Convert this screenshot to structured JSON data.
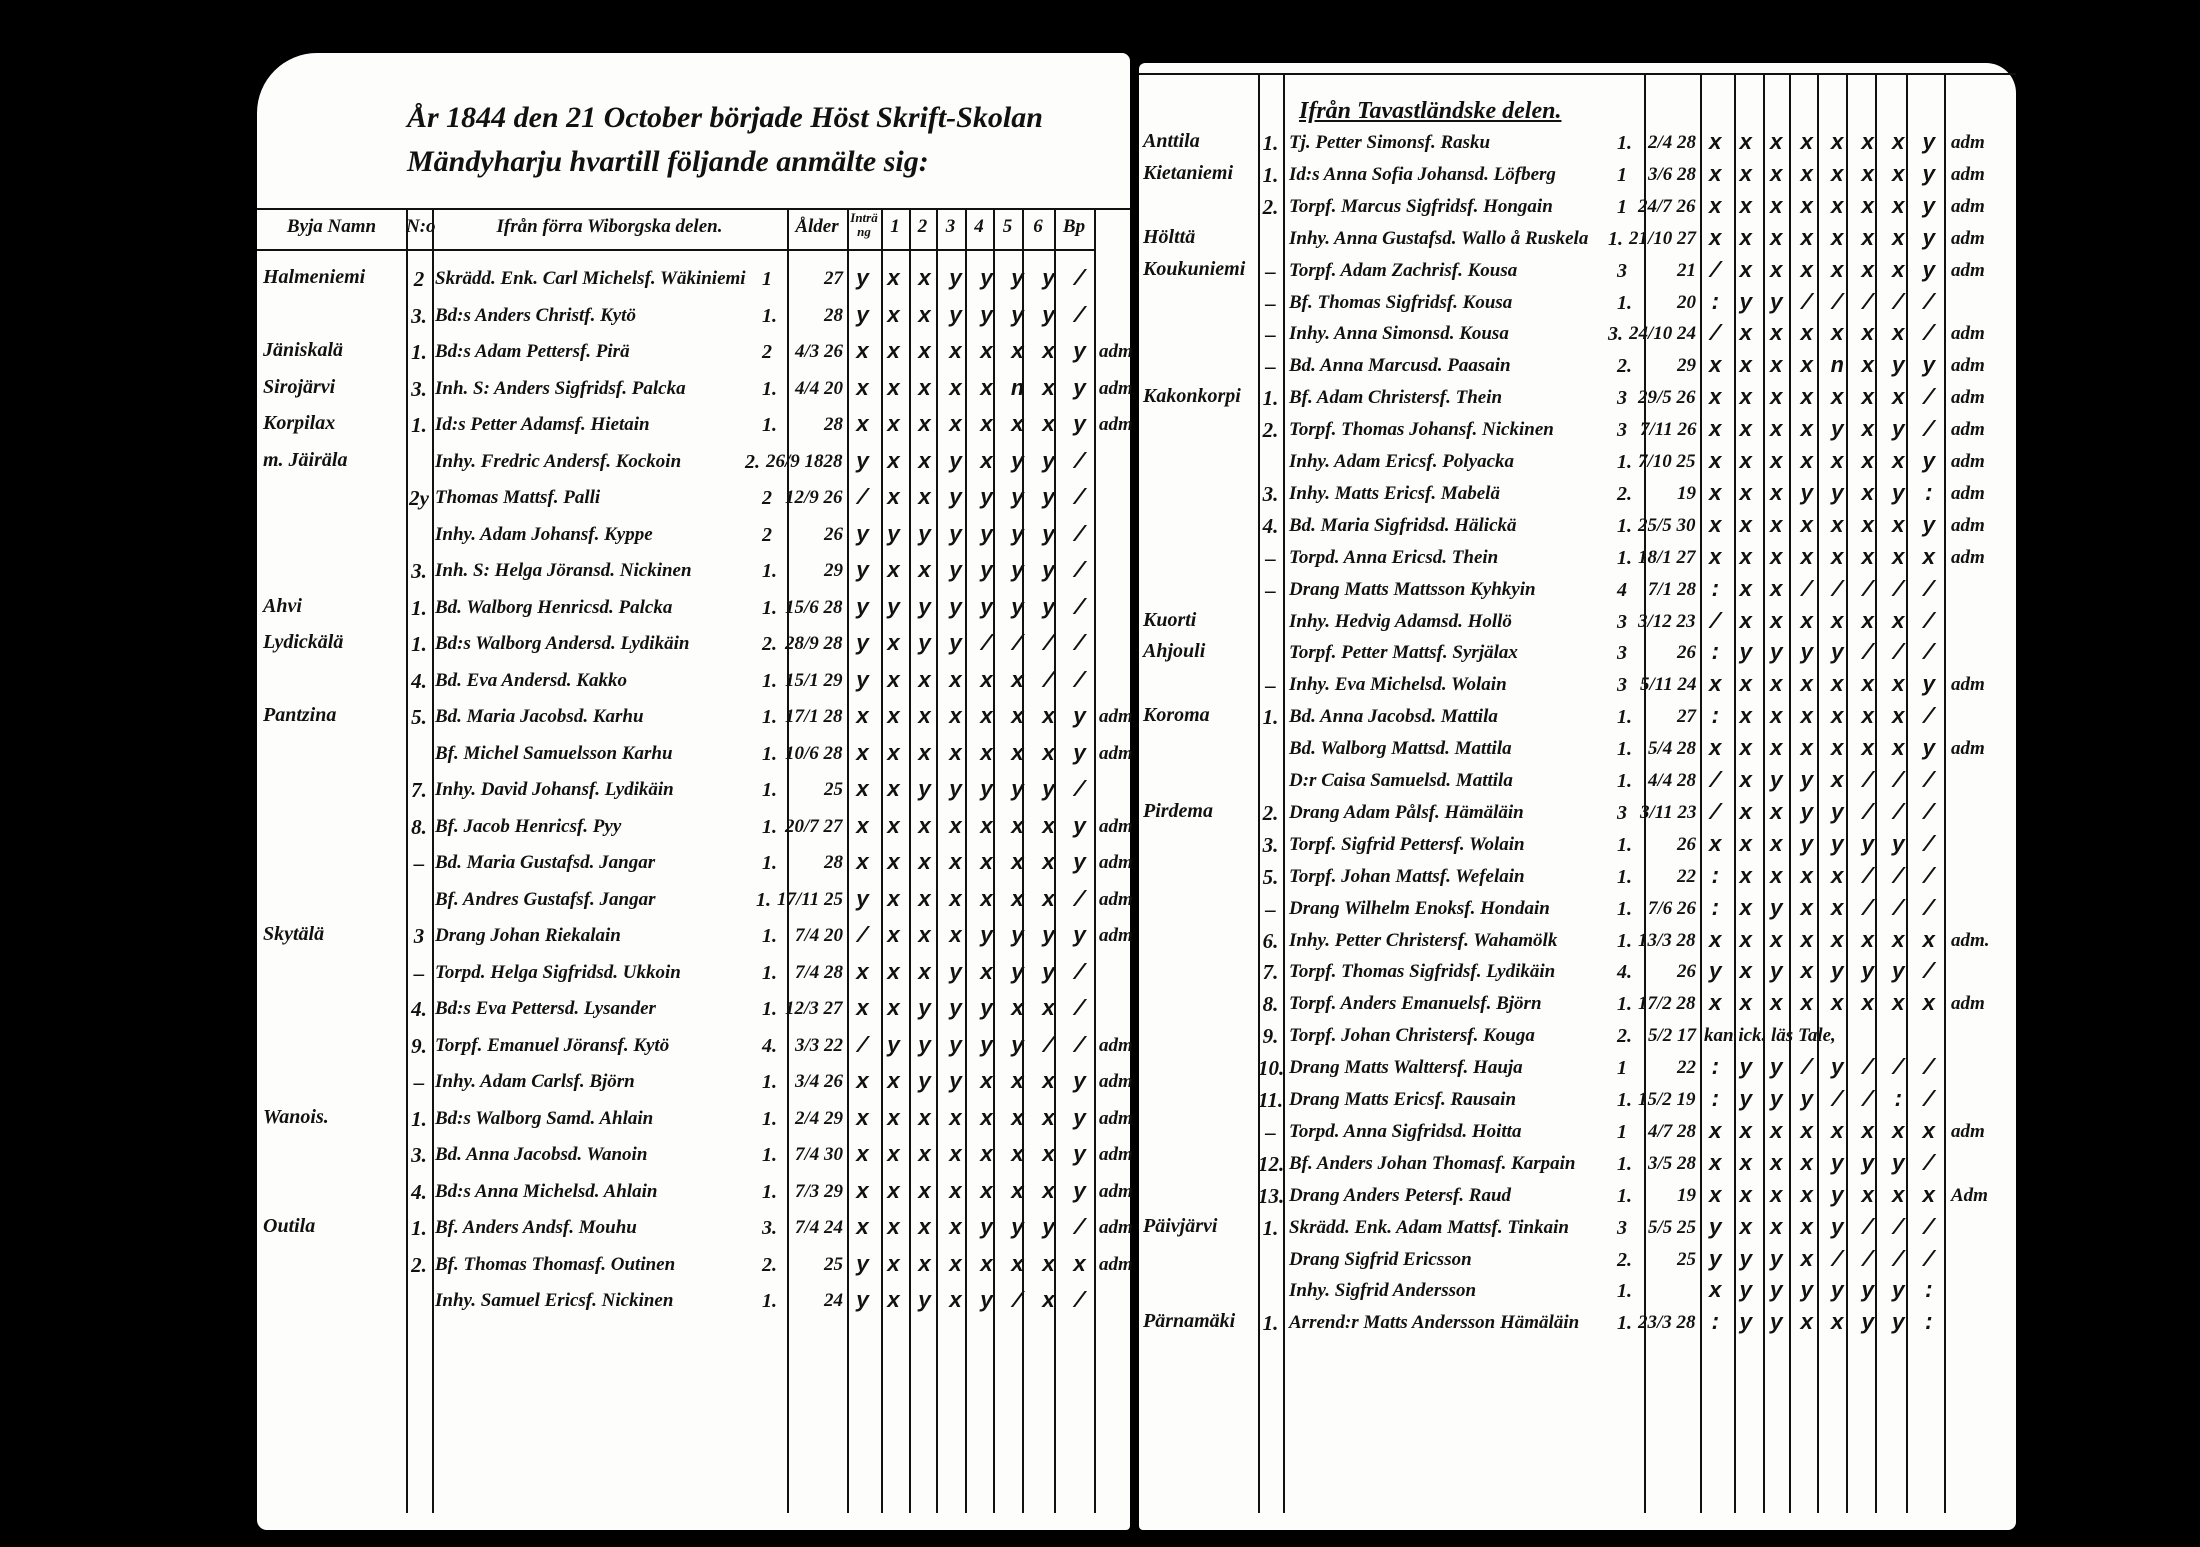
{
  "left": {
    "title_line1": "År 1844 den 21 October började Höst Skrift-Skolan",
    "title_line2": "Mändyharju hvartill följande anmälte sig:",
    "headers": [
      "Byja Namn",
      "N:o",
      "Ifrån förra Wiborgska delen.",
      "Ålder",
      "Inträng",
      "1",
      "2",
      "3",
      "4",
      "5",
      "6",
      "Bp"
    ],
    "rows": [
      {
        "village": "Halmeniemi",
        "nr": "2",
        "name": "Skrädd. Enk. Carl Michelsf. Wäkiniemi",
        "count": "1",
        "age": "27",
        "marks": "yxxyyyy/",
        "remark": ""
      },
      {
        "village": "",
        "nr": "3.",
        "name": "Bd:s Anders Christf. Kytö",
        "count": "1.",
        "age": "28",
        "marks": "yxxyyyy/",
        "remark": ""
      },
      {
        "village": "Jäniskalä",
        "nr": "1.",
        "name": "Bd:s Adam Pettersf. Pirä",
        "count": "2",
        "age": "4/3 26",
        "marks": "xxxxxxxy",
        "remark": "adm"
      },
      {
        "village": "Sirojärvi",
        "nr": "3.",
        "name": "Inh. S: Anders Sigfridsf. Palcka",
        "count": "1.",
        "age": "4/4 20",
        "marks": "xxxxxnxy",
        "remark": "adm"
      },
      {
        "village": "Korpilax",
        "nr": "1.",
        "name": "Id:s Petter Adamsf. Hietain",
        "count": "1.",
        "age": "28",
        "marks": "xxxxxxxy",
        "remark": "adm"
      },
      {
        "village": "m. Jäiräla",
        "nr": "",
        "name": "Inhy. Fredric Andersf. Kockoin",
        "count": "2.",
        "age": "26/9 1828",
        "marks": "yxxyxyy/",
        "remark": ""
      },
      {
        "village": "",
        "nr": "2y",
        "name": "Thomas Mattsf. Palli",
        "count": "2",
        "age": "12/9 26",
        "marks": "/xxyyyy/",
        "remark": ""
      },
      {
        "village": "",
        "nr": "",
        "name": "Inhy. Adam Johansf. Kyppe",
        "count": "2",
        "age": "26",
        "marks": "yyyyyyy/",
        "remark": ""
      },
      {
        "village": "",
        "nr": "3.",
        "name": "Inh. S: Helga Jöransd. Nickinen",
        "count": "1.",
        "age": "29",
        "marks": "yxxyyyy/",
        "remark": ""
      },
      {
        "village": "Ahvi",
        "nr": "1.",
        "name": "Bd. Walborg Henricsd. Palcka",
        "count": "1.",
        "age": "15/6 28",
        "marks": "yyyyyyy/",
        "remark": ""
      },
      {
        "village": "Lydickälä",
        "nr": "1.",
        "name": "Bd:s Walborg Andersd. Lydikäin",
        "count": "2.",
        "age": "28/9 28",
        "marks": "yxyy////",
        "remark": ""
      },
      {
        "village": "",
        "nr": "4.",
        "name": "Bd. Eva Andersd. Kakko",
        "count": "1.",
        "age": "15/1 29",
        "marks": "yxxxxx//",
        "remark": ""
      },
      {
        "village": "Pantzina",
        "nr": "5.",
        "name": "Bd. Maria Jacobsd. Karhu",
        "count": "1.",
        "age": "17/1 28",
        "marks": "xxxxxxxy",
        "remark": "adm"
      },
      {
        "village": "",
        "nr": "",
        "name": "Bf. Michel Samuelsson Karhu",
        "count": "1.",
        "age": "10/6 28",
        "marks": "xxxxxxxy",
        "remark": "adm"
      },
      {
        "village": "",
        "nr": "7.",
        "name": "Inhy. David Johansf. Lydikäin",
        "count": "1.",
        "age": "25",
        "marks": "xxyyyyy/",
        "remark": ""
      },
      {
        "village": "",
        "nr": "8.",
        "name": "Bf. Jacob Henricsf. Pyy",
        "count": "1.",
        "age": "20/7 27",
        "marks": "xxxxxxxy",
        "remark": "adm"
      },
      {
        "village": "",
        "nr": "–",
        "name": "Bd. Maria Gustafsd. Jangar",
        "count": "1.",
        "age": "28",
        "marks": "xxxxxxxy",
        "remark": "adm"
      },
      {
        "village": "",
        "nr": "",
        "name": "Bf. Andres Gustafsf. Jangar",
        "count": "1.",
        "age": "17/11 25",
        "marks": "yxxxxxx/",
        "remark": "adm"
      },
      {
        "village": "Skytälä",
        "nr": "3",
        "name": "Drang Johan Riekalain",
        "count": "1.",
        "age": "7/4 20",
        "marks": "/xxxyyyy",
        "remark": "adm"
      },
      {
        "village": "",
        "nr": "–",
        "name": "Torpd. Helga Sigfridsd. Ukkoin",
        "count": "1.",
        "age": "7/4 28",
        "marks": "xxxyxyy/",
        "remark": ""
      },
      {
        "village": "",
        "nr": "4.",
        "name": "Bd:s Eva Pettersd. Lysander",
        "count": "1.",
        "age": "12/3 27",
        "marks": "xxyyyxx/",
        "remark": ""
      },
      {
        "village": "",
        "nr": "9.",
        "name": "Torpf. Emanuel Jöransf. Kytö",
        "count": "4.",
        "age": "3/3 22",
        "marks": "/yyyyy//",
        "remark": "adm"
      },
      {
        "village": "",
        "nr": "–",
        "name": "Inhy. Adam Carlsf. Björn",
        "count": "1.",
        "age": "3/4 26",
        "marks": "xxyyxxxy",
        "remark": "adm"
      },
      {
        "village": "Wanois.",
        "nr": "1.",
        "name": "Bd:s Walborg Samd. Ahlain",
        "count": "1.",
        "age": "2/4 29",
        "marks": "xxxxxxxy",
        "remark": "adm"
      },
      {
        "village": "",
        "nr": "3.",
        "name": "Bd. Anna Jacobsd. Wanoin",
        "count": "1.",
        "age": "7/4 30",
        "marks": "xxxxxxxy",
        "remark": "adm"
      },
      {
        "village": "",
        "nr": "4.",
        "name": "Bd:s Anna Michelsd. Ahlain",
        "count": "1.",
        "age": "7/3 29",
        "marks": "xxxxxxxy",
        "remark": "adm"
      },
      {
        "village": "Outila",
        "nr": "1.",
        "name": "Bf. Anders Andsf. Mouhu",
        "count": "3.",
        "age": "7/4 24",
        "marks": "xxxxyyy/",
        "remark": "adm"
      },
      {
        "village": "",
        "nr": "2.",
        "name": "Bf. Thomas Thomasf. Outinen",
        "count": "2.",
        "age": "25",
        "marks": "yxxxxxxx",
        "remark": "adm"
      },
      {
        "village": "",
        "nr": "",
        "name": "Inhy. Samuel Ericsf. Nickinen",
        "count": "1.",
        "age": "24",
        "marks": "yxyxy/x/",
        "remark": ""
      }
    ]
  },
  "right": {
    "section_title": "Ifrån Tavastländske delen.",
    "rows": [
      {
        "village": "Anttila",
        "nr": "1.",
        "name": "Tj. Petter Simonsf. Rasku",
        "count": "1.",
        "age": "2/4 28",
        "marks": "xxxxxxxy",
        "remark": "adm"
      },
      {
        "village": "Kietaniemi",
        "nr": "1.",
        "name": "Id:s Anna Sofia Johansd. Löfberg",
        "count": "1",
        "age": "3/6 28",
        "marks": "xxxxxxxy",
        "remark": "adm"
      },
      {
        "village": "",
        "nr": "2.",
        "name": "Torpf. Marcus Sigfridsf. Hongain",
        "count": "1",
        "age": "24/7 26",
        "marks": "xxxxxxxy",
        "remark": "adm"
      },
      {
        "village": "Hölttä",
        "nr": "",
        "name": "Inhy. Anna Gustafsd. Wallo å Ruskela",
        "count": "1.",
        "age": "21/10 27",
        "marks": "xxxxxxxy",
        "remark": "adm"
      },
      {
        "village": "Koukuniemi",
        "nr": "–",
        "name": "Torpf. Adam Zachrisf. Kousa",
        "count": "3",
        "age": "21",
        "marks": "/xxxxxxy",
        "remark": "adm"
      },
      {
        "village": "",
        "nr": "–",
        "name": "Bf. Thomas Sigfridsf. Kousa",
        "count": "1.",
        "age": "20",
        "marks": ":yy/////",
        "remark": ""
      },
      {
        "village": "",
        "nr": "–",
        "name": "Inhy. Anna Simonsd. Kousa",
        "count": "3.",
        "age": "24/10 24",
        "marks": "/xxxxxx/",
        "remark": "adm"
      },
      {
        "village": "",
        "nr": "–",
        "name": "Bd. Anna Marcusd. Paasain",
        "count": "2.",
        "age": "29",
        "marks": "xxxxnxyy",
        "remark": "adm"
      },
      {
        "village": "Kakonkorpi",
        "nr": "1.",
        "name": "Bf. Adam Christersf. Thein",
        "count": "3",
        "age": "29/5 26",
        "marks": "xxxxxxx/",
        "remark": "adm"
      },
      {
        "village": "",
        "nr": "2.",
        "name": "Torpf. Thomas Johansf. Nickinen",
        "count": "3",
        "age": "7/11 26",
        "marks": "xxxxyxy/",
        "remark": "adm"
      },
      {
        "village": "",
        "nr": "",
        "name": "Inhy. Adam Ericsf. Polyacka",
        "count": "1.",
        "age": "7/10 25",
        "marks": "xxxxxxxy",
        "remark": "adm"
      },
      {
        "village": "",
        "nr": "3.",
        "name": "Inhy. Matts Ericsf. Mabelä",
        "count": "2.",
        "age": "19",
        "marks": "xxxyyxy:",
        "remark": "adm"
      },
      {
        "village": "",
        "nr": "4.",
        "name": "Bd. Maria Sigfridsd. Hälickä",
        "count": "1.",
        "age": "25/5 30",
        "marks": "xxxxxxxy",
        "remark": "adm"
      },
      {
        "village": "",
        "nr": "–",
        "name": "Torpd. Anna Ericsd. Thein",
        "count": "1.",
        "age": "18/1 27",
        "marks": "xxxxxxxx",
        "remark": "adm"
      },
      {
        "village": "",
        "nr": "–",
        "name": "Drang Matts Mattsson Kyhkyin",
        "count": "4",
        "age": "7/1 28",
        "marks": ":xx/////",
        "remark": ""
      },
      {
        "village": "Kuorti",
        "nr": "",
        "name": "Inhy. Hedvig Adamsd. Hollö",
        "count": "3",
        "age": "3/12 23",
        "marks": "/xxxxxx/",
        "remark": ""
      },
      {
        "village": "Ahjouli",
        "nr": "",
        "name": "Torpf. Petter Mattsf. Syrjälax",
        "count": "3",
        "age": "26",
        "marks": ":yyyy///",
        "remark": ""
      },
      {
        "village": "",
        "nr": "–",
        "name": "Inhy. Eva Michelsd. Wolain",
        "count": "3",
        "age": "5/11 24",
        "marks": "xxxxxxxy",
        "remark": "adm"
      },
      {
        "village": "Koroma",
        "nr": "1.",
        "name": "Bd. Anna Jacobsd. Mattila",
        "count": "1.",
        "age": "27",
        "marks": ":xxxxxx/",
        "remark": ""
      },
      {
        "village": "",
        "nr": "",
        "name": "Bd. Walborg Mattsd. Mattila",
        "count": "1.",
        "age": "5/4 28",
        "marks": "xxxxxxxy",
        "remark": "adm"
      },
      {
        "village": "",
        "nr": "",
        "name": "D:r Caisa Samuelsd. Mattila",
        "count": "1.",
        "age": "4/4 28",
        "marks": "/xyyx///",
        "remark": ""
      },
      {
        "village": "Pirdema",
        "nr": "2.",
        "name": "Drang Adam Pålsf. Hämäläin",
        "count": "3",
        "age": "3/11 23",
        "marks": "/xxyy///",
        "remark": ""
      },
      {
        "village": "",
        "nr": "3.",
        "name": "Torpf. Sigfrid Pettersf. Wolain",
        "count": "1.",
        "age": "26",
        "marks": "xxxyyyy/",
        "remark": ""
      },
      {
        "village": "",
        "nr": "5.",
        "name": "Torpf. Johan Mattsf. Wefelain",
        "count": "1.",
        "age": "22",
        "marks": ":xxxx///",
        "remark": ""
      },
      {
        "village": "",
        "nr": "–",
        "name": "Drang Wilhelm Enoksf. Hondain",
        "count": "1.",
        "age": "7/6 26",
        "marks": ":xyxx///",
        "remark": ""
      },
      {
        "village": "",
        "nr": "6.",
        "name": "Inhy. Petter Christersf. Wahamölk",
        "count": "1.",
        "age": "13/3 28",
        "marks": "xxxxxxxx",
        "remark": "adm."
      },
      {
        "village": "",
        "nr": "7.",
        "name": "Torpf. Thomas Sigfridsf. Lydikäin",
        "count": "4.",
        "age": "26",
        "marks": "yxyxyyy/",
        "remark": ""
      },
      {
        "village": "",
        "nr": "8.",
        "name": "Torpf. Anders Emanuelsf. Björn",
        "count": "1.",
        "age": "17/2 28",
        "marks": "xxxxxxxx",
        "remark": "adm"
      },
      {
        "village": "",
        "nr": "9.",
        "name": "Torpf. Johan Christersf. Kouga",
        "count": "2.",
        "age": "5/2 17",
        "marks": "",
        "remark": "",
        "note": "kan ick. läs Tale,"
      },
      {
        "village": "",
        "nr": "10.",
        "name": "Drang Matts Walttersf. Hauja",
        "count": "1",
        "age": "22",
        "marks": ":yy/y///",
        "remark": ""
      },
      {
        "village": "",
        "nr": "11.",
        "name": "Drang Matts Ericsf. Rausain",
        "count": "1.",
        "age": "15/2 19",
        "marks": ":yyy//:/",
        "remark": ""
      },
      {
        "village": "",
        "nr": "–",
        "name": "Torpd. Anna Sigfridsd. Hoitta",
        "count": "1",
        "age": "4/7 28",
        "marks": "xxxxxxxx",
        "remark": "adm"
      },
      {
        "village": "",
        "nr": "12.",
        "name": "Bf. Anders Johan Thomasf. Karpain",
        "count": "1.",
        "age": "3/5 28",
        "marks": "xxxxyyy/",
        "remark": ""
      },
      {
        "village": "",
        "nr": "13.",
        "name": "Drang Anders Petersf. Raud",
        "count": "1.",
        "age": "19",
        "marks": "xxxxyxxx",
        "remark": "Adm"
      },
      {
        "village": "Päivjärvi",
        "nr": "1.",
        "name": "Skrädd. Enk. Adam Mattsf. Tinkain",
        "count": "3",
        "age": "5/5 25",
        "marks": "yxxxy///",
        "remark": ""
      },
      {
        "village": "",
        "nr": "",
        "name": "Drang Sigfrid Ericsson",
        "count": "2.",
        "age": "25",
        "marks": "yyyx////",
        "remark": ""
      },
      {
        "village": "",
        "nr": "",
        "name": "Inhy. Sigfrid Andersson",
        "count": "1.",
        "age": "",
        "marks": "xyyyyyy:",
        "remark": ""
      },
      {
        "village": "Pärnamäki",
        "nr": "1.",
        "name": "Arrend:r Matts Andersson Hämäläin",
        "count": "1.",
        "age": "23/3 28",
        "marks": ":yyxxyy:",
        "remark": ""
      }
    ]
  }
}
